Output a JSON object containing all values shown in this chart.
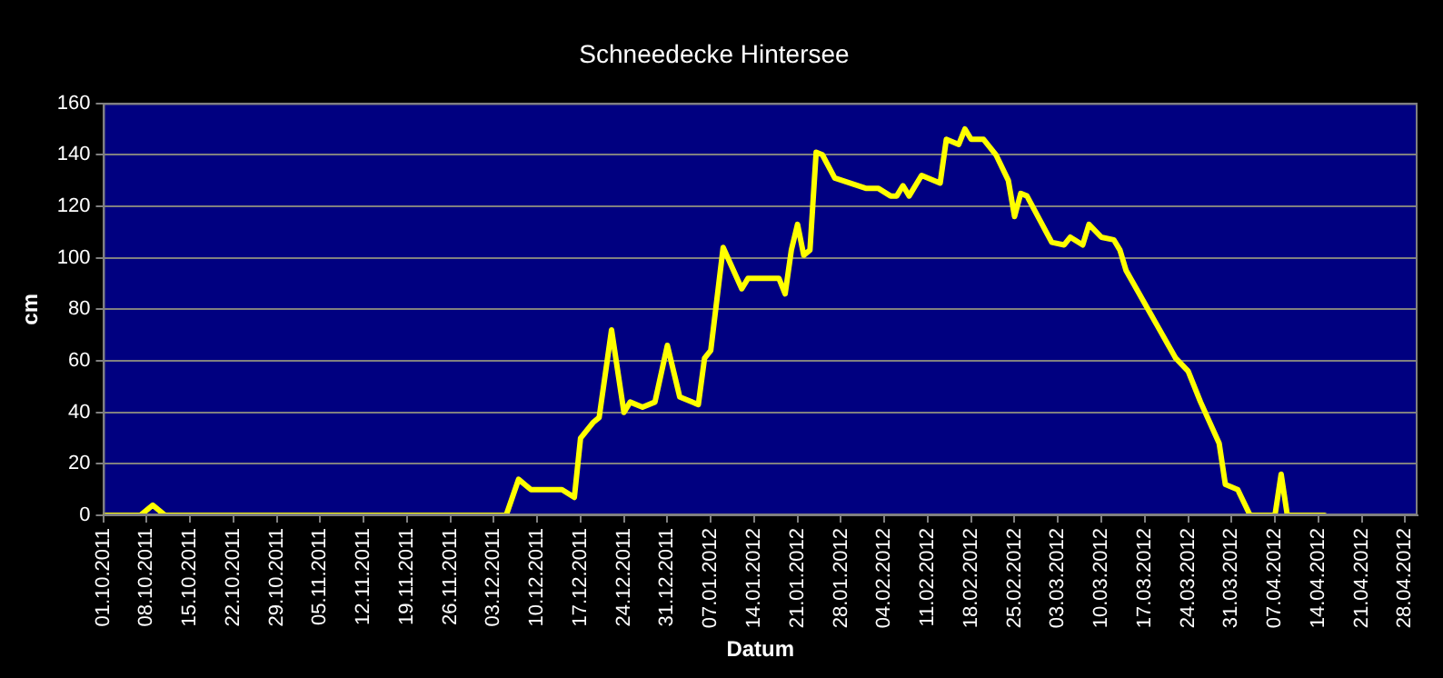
{
  "chart_data": {
    "type": "line",
    "title": "Schneedecke Hintersee",
    "xlabel": "Datum",
    "ylabel": "cm",
    "x": [
      "2011-10-01",
      "2011-10-07",
      "2011-10-09",
      "2011-10-11",
      "2011-12-05",
      "2011-12-07",
      "2011-12-09",
      "2011-12-14",
      "2011-12-16",
      "2011-12-17",
      "2011-12-19",
      "2011-12-20",
      "2011-12-22",
      "2011-12-24",
      "2011-12-25",
      "2011-12-27",
      "2011-12-29",
      "2011-12-31",
      "2012-01-02",
      "2012-01-05",
      "2012-01-06",
      "2012-01-07",
      "2012-01-09",
      "2012-01-12",
      "2012-01-13",
      "2012-01-18",
      "2012-01-19",
      "2012-01-20",
      "2012-01-21",
      "2012-01-22",
      "2012-01-23",
      "2012-01-24",
      "2012-01-25",
      "2012-01-27",
      "2012-02-01",
      "2012-02-03",
      "2012-02-05",
      "2012-02-06",
      "2012-02-07",
      "2012-02-08",
      "2012-02-10",
      "2012-02-13",
      "2012-02-14",
      "2012-02-16",
      "2012-02-17",
      "2012-02-18",
      "2012-02-20",
      "2012-02-22",
      "2012-02-24",
      "2012-02-25",
      "2012-02-26",
      "2012-02-27",
      "2012-02-29",
      "2012-03-02",
      "2012-03-04",
      "2012-03-05",
      "2012-03-07",
      "2012-03-08",
      "2012-03-10",
      "2012-03-12",
      "2012-03-13",
      "2012-03-14",
      "2012-03-18",
      "2012-03-22",
      "2012-03-24",
      "2012-03-26",
      "2012-03-29",
      "2012-03-30",
      "2012-04-01",
      "2012-04-03",
      "2012-04-07",
      "2012-04-08",
      "2012-04-09",
      "2012-04-15"
    ],
    "series": [
      {
        "color": "#ffff00",
        "values": [
          0,
          0,
          4,
          0,
          0,
          14,
          10,
          10,
          7,
          30,
          36,
          38,
          72,
          40,
          44,
          42,
          44,
          66,
          46,
          43,
          61,
          64,
          104,
          88,
          92,
          92,
          86,
          103,
          113,
          101,
          103,
          141,
          140,
          131,
          127,
          127,
          124,
          124,
          128,
          124,
          132,
          129,
          146,
          144,
          150,
          146,
          146,
          140,
          130,
          116,
          125,
          124,
          115,
          106,
          105,
          108,
          105,
          113,
          108,
          107,
          103,
          95,
          78,
          61,
          56,
          44,
          28,
          12,
          10,
          0,
          0,
          16,
          0,
          0
        ]
      }
    ],
    "xlim": [
      "2011-10-01",
      "2012-04-30"
    ],
    "xticks": [
      {
        "value": "2011-10-01",
        "label": "01.10.2011"
      },
      {
        "value": "2011-10-08",
        "label": "08.10.2011"
      },
      {
        "value": "2011-10-15",
        "label": "15.10.2011"
      },
      {
        "value": "2011-10-22",
        "label": "22.10.2011"
      },
      {
        "value": "2011-10-29",
        "label": "29.10.2011"
      },
      {
        "value": "2011-11-05",
        "label": "05.11.2011"
      },
      {
        "value": "2011-11-12",
        "label": "12.11.2011"
      },
      {
        "value": "2011-11-19",
        "label": "19.11.2011"
      },
      {
        "value": "2011-11-26",
        "label": "26.11.2011"
      },
      {
        "value": "2011-12-03",
        "label": "03.12.2011"
      },
      {
        "value": "2011-12-10",
        "label": "10.12.2011"
      },
      {
        "value": "2011-12-17",
        "label": "17.12.2011"
      },
      {
        "value": "2011-12-24",
        "label": "24.12.2011"
      },
      {
        "value": "2011-12-31",
        "label": "31.12.2011"
      },
      {
        "value": "2012-01-07",
        "label": "07.01.2012"
      },
      {
        "value": "2012-01-14",
        "label": "14.01.2012"
      },
      {
        "value": "2012-01-21",
        "label": "21.01.2012"
      },
      {
        "value": "2012-01-28",
        "label": "28.01.2012"
      },
      {
        "value": "2012-02-04",
        "label": "04.02.2012"
      },
      {
        "value": "2012-02-11",
        "label": "11.02.2012"
      },
      {
        "value": "2012-02-18",
        "label": "18.02.2012"
      },
      {
        "value": "2012-02-25",
        "label": "25.02.2012"
      },
      {
        "value": "2012-03-03",
        "label": "03.03.2012"
      },
      {
        "value": "2012-03-10",
        "label": "10.03.2012"
      },
      {
        "value": "2012-03-17",
        "label": "17.03.2012"
      },
      {
        "value": "2012-03-24",
        "label": "24.03.2012"
      },
      {
        "value": "2012-03-31",
        "label": "31.03.2012"
      },
      {
        "value": "2012-04-07",
        "label": "07.04.2012"
      },
      {
        "value": "2012-04-14",
        "label": "14.04.2012"
      },
      {
        "value": "2012-04-21",
        "label": "21.04.2012"
      },
      {
        "value": "2012-04-28",
        "label": "28.04.2012"
      }
    ],
    "ylim": [
      0,
      160
    ],
    "yticks": [
      0,
      20,
      40,
      60,
      80,
      100,
      120,
      140,
      160
    ],
    "grid": "y",
    "legend": false,
    "marker": "none",
    "line_style": "solid"
  }
}
